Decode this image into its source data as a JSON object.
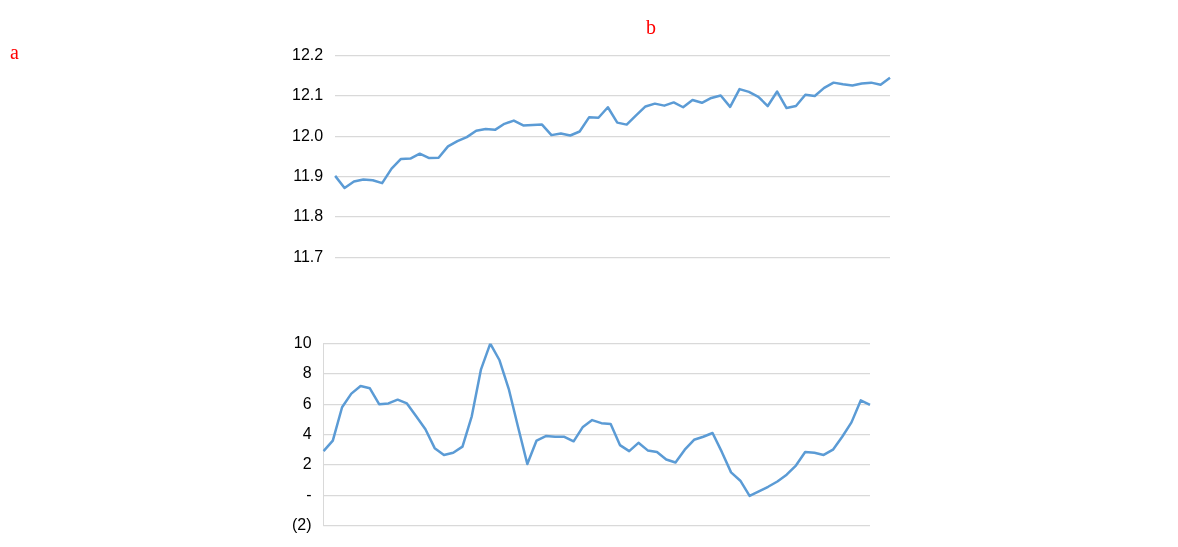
{
  "chart_data": [
    {
      "type": "line",
      "annotations": [
        "a",
        "b"
      ],
      "categories": [
        null,
        null,
        null,
        null,
        null,
        null,
        null,
        null,
        null,
        null,
        null,
        null,
        null,
        null,
        null,
        null,
        null,
        null,
        null,
        null,
        null,
        null,
        null,
        null,
        null,
        null,
        null,
        null,
        null,
        null,
        null,
        null,
        null,
        null,
        null,
        null,
        null,
        null,
        null,
        null,
        null,
        null,
        null,
        null,
        null,
        null,
        null,
        null,
        null,
        null,
        null,
        null,
        null,
        null,
        null,
        null,
        null,
        null,
        null,
        null
      ],
      "series": [
        {
          "color": "#5b9bd5",
          "values": [
            11.902,
            11.872,
            11.888,
            11.893,
            11.891,
            11.884,
            11.92,
            11.944,
            11.945,
            11.957,
            11.946,
            11.947,
            11.975,
            11.988,
            11.998,
            12.014,
            12.018,
            12.016,
            12.031,
            12.039,
            12.027,
            12.028,
            12.029,
            12.003,
            12.007,
            12.002,
            12.012,
            12.047,
            12.046,
            12.072,
            12.034,
            12.029,
            12.052,
            12.074,
            12.081,
            12.076,
            12.084,
            12.072,
            12.09,
            12.083,
            12.095,
            12.101,
            12.073,
            12.117,
            12.11,
            12.098,
            12.075,
            12.111,
            12.07,
            12.075,
            12.103,
            12.1,
            12.12,
            12.133,
            12.129,
            12.126,
            12.131,
            12.133,
            12.128,
            12.145
          ]
        }
      ],
      "ylim": [
        11.7,
        12.2
      ],
      "yticks": [
        {
          "value": 11.7,
          "label": "11.7"
        },
        {
          "value": 11.8,
          "label": "11.8"
        },
        {
          "value": 11.9,
          "label": "11.9"
        },
        {
          "value": 12.0,
          "label": "12.0"
        },
        {
          "value": 12.1,
          "label": "12.1"
        },
        {
          "value": 12.2,
          "label": "12.2"
        }
      ],
      "grid": "y",
      "legend": false,
      "tick_labels": "y",
      "marker": "none",
      "line_style": "solid"
    },
    {
      "type": "line",
      "categories": [
        null,
        null,
        null,
        null,
        null,
        null,
        null,
        null,
        null,
        null,
        null,
        null,
        null,
        null,
        null,
        null,
        null,
        null,
        null,
        null,
        null,
        null,
        null,
        null,
        null,
        null,
        null,
        null,
        null,
        null,
        null,
        null,
        null,
        null,
        null,
        null,
        null,
        null,
        null,
        null,
        null,
        null,
        null,
        null,
        null,
        null,
        null,
        null,
        null,
        null,
        null,
        null,
        null,
        null,
        null,
        null,
        null,
        null,
        null,
        null
      ],
      "series": [
        {
          "color": "#5b9bd5",
          "values": [
            2.9,
            3.6,
            5.8,
            6.7,
            7.2,
            7.05,
            6.0,
            6.05,
            6.3,
            6.05,
            5.2,
            4.35,
            3.1,
            2.65,
            2.8,
            3.2,
            5.2,
            8.3,
            10.0,
            8.9,
            7.0,
            4.5,
            2.05,
            3.6,
            3.9,
            3.85,
            3.85,
            3.55,
            4.5,
            4.95,
            4.75,
            4.7,
            3.3,
            2.9,
            3.45,
            2.95,
            2.85,
            2.35,
            2.15,
            3.0,
            3.65,
            3.85,
            4.1,
            2.85,
            1.5,
            0.95,
            -0.05,
            0.25,
            0.55,
            0.9,
            1.35,
            1.95,
            2.85,
            2.8,
            2.65,
            3.0,
            3.85,
            4.8,
            6.25,
            5.95
          ]
        }
      ],
      "ylim": [
        -2,
        10
      ],
      "yticks": [
        {
          "value": -2,
          "label": "(2)"
        },
        {
          "value": 0,
          "label": "-"
        },
        2,
        4,
        6,
        8,
        10
      ],
      "grid": "y",
      "legend": false,
      "tick_labels": "y",
      "marker": "none",
      "line_style": "solid"
    }
  ]
}
